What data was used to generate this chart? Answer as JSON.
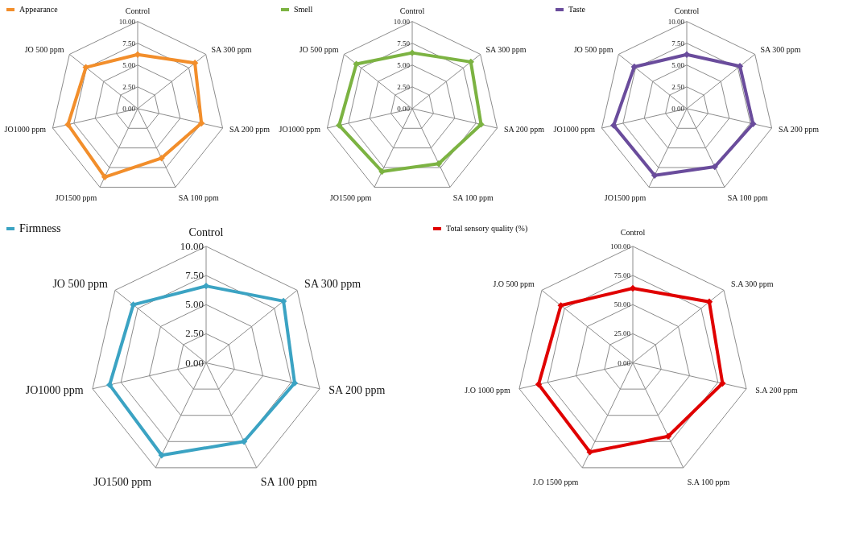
{
  "chart_data": [
    {
      "type": "radar",
      "categories": [
        "Control",
        "SA 300 ppm",
        "SA 200 ppm",
        "SA 100 ppm",
        "JO1500 ppm",
        "JO1000 ppm",
        "JO 500 ppm"
      ],
      "series": [
        {
          "name": "Appearance",
          "color": "#f28e2b",
          "values": [
            6.2,
            8.4,
            7.5,
            6.3,
            8.7,
            8.2,
            7.6
          ]
        }
      ],
      "ylim": [
        0,
        10
      ],
      "yticks": [
        {
          "value": 0,
          "label": "0.00"
        },
        {
          "value": 2.5,
          "label": "2.50"
        },
        {
          "value": 5,
          "label": "5.00"
        },
        {
          "value": 7.5,
          "label": "7.50"
        },
        {
          "value": 10,
          "label": "10.00"
        }
      ],
      "grid": true,
      "legend": "top left",
      "marker": "diamond"
    },
    {
      "type": "radar",
      "categories": [
        "Control",
        "SA 300 ppm",
        "SA 200 ppm",
        "SA 100 ppm",
        "JO1500 ppm",
        "JO1000 ppm",
        "JO 500 ppm"
      ],
      "series": [
        {
          "name": "Smell",
          "color": "#7cb342",
          "values": [
            6.4,
            8.6,
            8.1,
            7.0,
            8.0,
            8.6,
            8.2
          ]
        }
      ],
      "ylim": [
        0,
        10
      ],
      "yticks": [
        {
          "value": 0,
          "label": "0.00"
        },
        {
          "value": 2.5,
          "label": "2.50"
        },
        {
          "value": 5,
          "label": "5.00"
        },
        {
          "value": 7.5,
          "label": "7.50"
        },
        {
          "value": 10,
          "label": "10.00"
        }
      ],
      "grid": true,
      "legend": "top left",
      "marker": "diamond"
    },
    {
      "type": "radar",
      "categories": [
        "Control",
        "SA 300 ppm",
        "SA 200 ppm",
        "SA 100 ppm",
        "JO1500 ppm",
        "JO1000 ppm",
        "JO 500 ppm"
      ],
      "series": [
        {
          "name": "Taste",
          "color": "#6a4c9c",
          "values": [
            6.2,
            7.8,
            7.8,
            7.4,
            8.5,
            8.6,
            7.7
          ]
        }
      ],
      "ylim": [
        0,
        10
      ],
      "yticks": [
        {
          "value": 0,
          "label": "0.00"
        },
        {
          "value": 2.5,
          "label": "2.50"
        },
        {
          "value": 5,
          "label": "5.00"
        },
        {
          "value": 7.5,
          "label": "7.50"
        },
        {
          "value": 10,
          "label": "10.00"
        }
      ],
      "grid": true,
      "legend": "top left",
      "marker": "diamond"
    },
    {
      "type": "radar",
      "categories": [
        "Control",
        "SA 300 ppm",
        "SA 200 ppm",
        "SA 100 ppm",
        "JO1500 ppm",
        "JO1000 ppm",
        "JO 500 ppm"
      ],
      "series": [
        {
          "name": "Firmness",
          "color": "#3ba3c3",
          "values": [
            6.6,
            8.5,
            7.8,
            7.5,
            8.8,
            8.5,
            8.0
          ]
        }
      ],
      "ylim": [
        0,
        10
      ],
      "yticks": [
        {
          "value": 0,
          "label": "0.00"
        },
        {
          "value": 2.5,
          "label": "2.50"
        },
        {
          "value": 5,
          "label": "5.00"
        },
        {
          "value": 7.5,
          "label": "7.50"
        },
        {
          "value": 10,
          "label": "10.00"
        }
      ],
      "grid": true,
      "legend": "top left",
      "marker": "diamond"
    },
    {
      "type": "radar",
      "categories": [
        "Control",
        "S.A 300 ppm",
        "S.A 200 ppm",
        "S.A 100 ppm",
        "J.O 1500 ppm",
        "J.O 1000 ppm",
        "J.O 500 ppm"
      ],
      "series": [
        {
          "name": "Total sensory quality (%)",
          "color": "#e00000",
          "values": [
            64,
            84,
            79,
            70,
            85,
            83,
            79
          ]
        }
      ],
      "ylim": [
        0,
        100
      ],
      "yticks": [
        {
          "value": 0,
          "label": "0.00"
        },
        {
          "value": 25,
          "label": "25.00"
        },
        {
          "value": 50,
          "label": "50.00"
        },
        {
          "value": 75,
          "label": "75.00"
        },
        {
          "value": 100,
          "label": "100.00"
        }
      ],
      "grid": true,
      "legend": "top left",
      "marker": "diamond"
    }
  ]
}
